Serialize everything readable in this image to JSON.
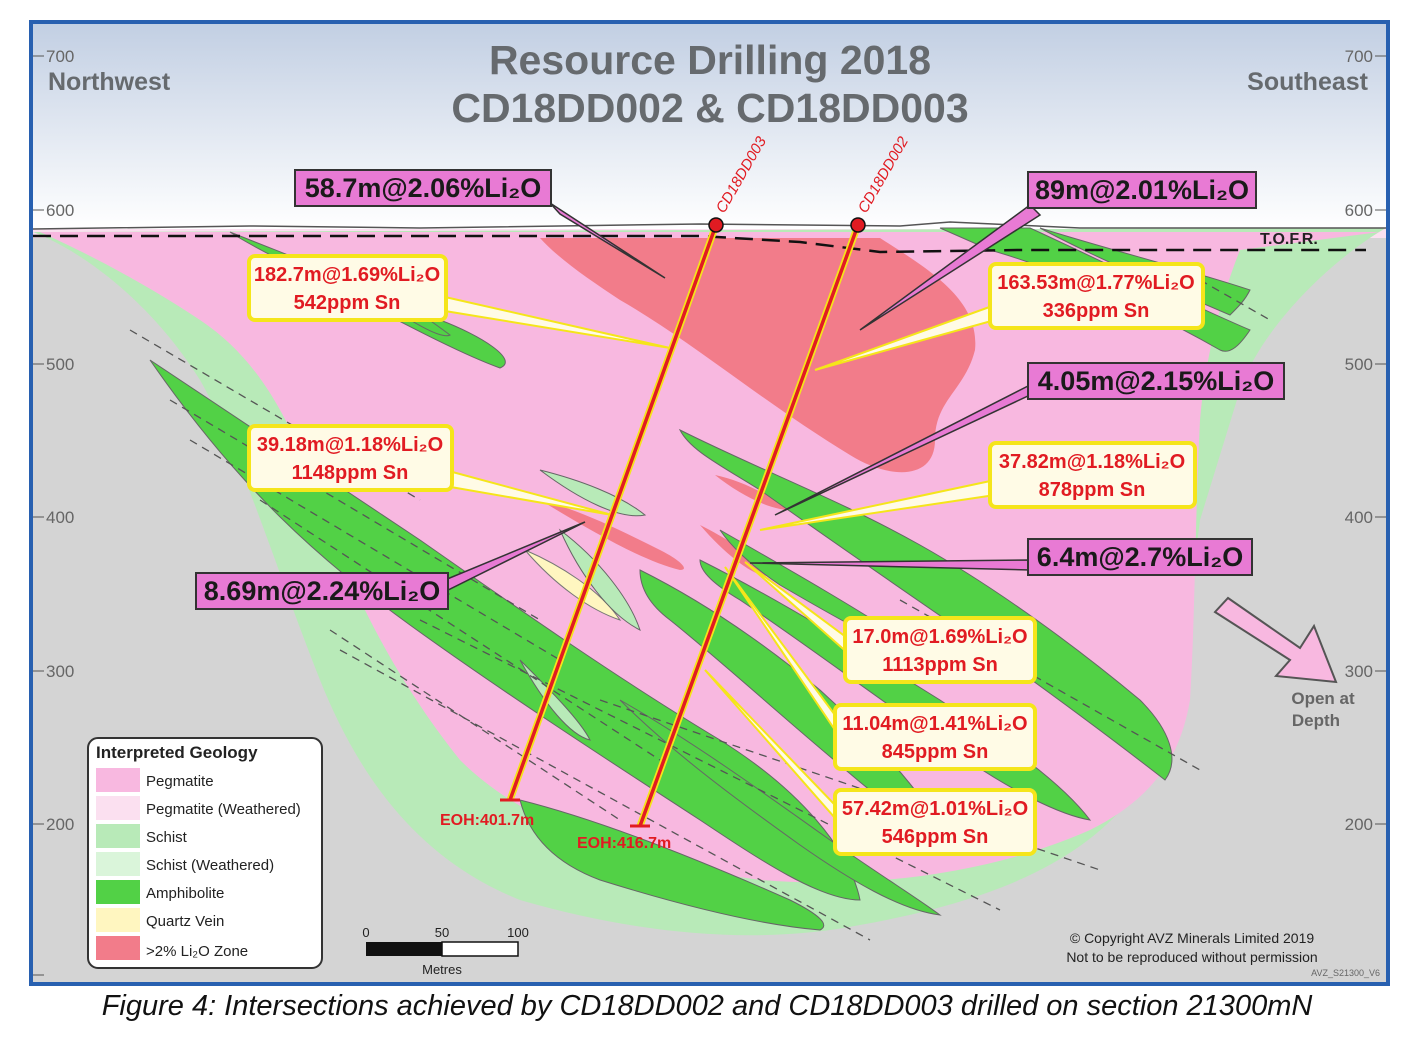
{
  "title": {
    "line1": "Resource Drilling 2018",
    "line2": "CD18DD002 & CD18DD003"
  },
  "directions": {
    "left": "Northwest",
    "right": "Southeast"
  },
  "axis": {
    "ticks": [
      "700",
      "600",
      "500",
      "400",
      "300",
      "200"
    ]
  },
  "surface_label": "T.O.F.R.",
  "drill_holes": [
    {
      "name": "CD18DD003",
      "eoh": "EOH:401.7m"
    },
    {
      "name": "CD18DD002",
      "eoh": "EOH:416.7m"
    }
  ],
  "intercepts_high_grade": [
    {
      "text": "58.7m@2.06%Li₂O"
    },
    {
      "text": "89m@2.01%Li₂O"
    },
    {
      "text": "4.05m@2.15%Li₂O"
    },
    {
      "text": "6.4m@2.7%Li₂O"
    },
    {
      "text": "8.69m@2.24%Li₂O"
    }
  ],
  "intercepts": [
    {
      "line1": "182.7m@1.69%Li₂O",
      "line2": "542ppm Sn"
    },
    {
      "line1": "163.53m@1.77%Li₂O",
      "line2": "336ppm Sn"
    },
    {
      "line1": "39.18m@1.18%Li₂O",
      "line2": "1148ppm Sn"
    },
    {
      "line1": "37.82m@1.18%Li₂O",
      "line2": "878ppm Sn"
    },
    {
      "line1": "17.0m@1.69%Li₂O",
      "line2": "1113ppm Sn"
    },
    {
      "line1": "11.04m@1.41%Li₂O",
      "line2": "845ppm Sn"
    },
    {
      "line1": "57.42m@1.01%Li₂O",
      "line2": "546ppm Sn"
    }
  ],
  "open_at_depth": {
    "line1": "Open at",
    "line2": "Depth"
  },
  "legend": {
    "title": "Interpreted Geology",
    "items": [
      {
        "label": "Pegmatite",
        "color": "#f8b8e0"
      },
      {
        "label": "Pegmatite (Weathered)",
        "color": "#fbe0f0"
      },
      {
        "label": "Schist",
        "color": "#b8eab8"
      },
      {
        "label": "Schist (Weathered)",
        "color": "#daf5da"
      },
      {
        "label": "Amphibolite",
        "color": "#52d146"
      },
      {
        "label": "Quartz Vein",
        "color": "#fff6c0"
      },
      {
        "label": ">2% Li₂O Zone",
        "color": "#f27c8a"
      }
    ]
  },
  "scale_bar": {
    "ticks": [
      "0",
      "50",
      "100"
    ],
    "unit": "Metres"
  },
  "copyright": {
    "line1": "© Copyright AVZ Minerals Limited 2019",
    "line2": "Not to be reproduced without permission"
  },
  "drawing_id": "AVZ_S21300_V6",
  "caption": "Figure 4: Intersections achieved by CD18DD002 and CD18DD003 drilled on section 21300mN",
  "colors": {
    "frame": "#2860b0",
    "background": "#d3d3d3",
    "sky_top": "#c7d3e6",
    "pegmatite": "#f8b8e0",
    "schist": "#b8eab8",
    "amphibolite": "#52d146",
    "li_zone": "#f27c8a",
    "drill": "#e11b22",
    "label_magenta": "#e87ad4",
    "label_yellow_fill": "#fffbe6",
    "label_yellow_border": "#f5e51a"
  }
}
